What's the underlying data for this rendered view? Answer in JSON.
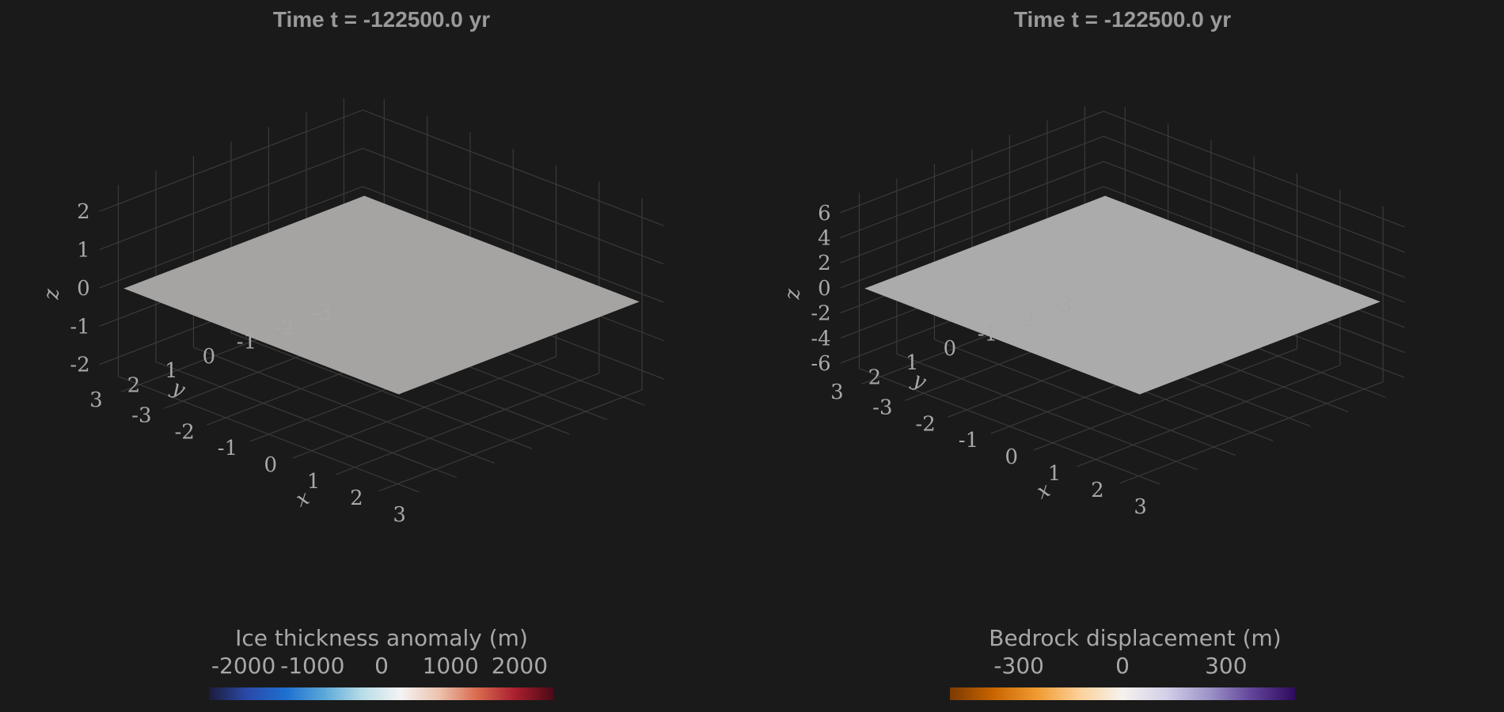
{
  "chart_data": [
    {
      "type": "surface",
      "title": "Time t = -122500.0 yr",
      "xlabel": "x",
      "ylabel": "y",
      "zlabel": "z",
      "x_ticks": [
        -3,
        -2,
        -1,
        0,
        1,
        2,
        3
      ],
      "y_ticks": [
        -3,
        -2,
        -1,
        0,
        1,
        2,
        3
      ],
      "z_ticks": [
        -2,
        -1,
        0,
        1,
        2
      ],
      "xlim": [
        -3.5,
        3.5
      ],
      "ylim": [
        -3.5,
        3.5
      ],
      "zlim": [
        -2.5,
        2.5
      ],
      "surface_z": 0,
      "surface_extent": [
        -3.2,
        3.2
      ],
      "surface_color": "#a6a4a3",
      "grid": true,
      "colorbar": {
        "label": "Ice thickness anomaly (m)",
        "ticks": [
          -2000,
          -1000,
          0,
          1000,
          2000
        ],
        "range": [
          -2500,
          2500
        ],
        "colors": [
          "#1c1c3a",
          "#2a4aa8",
          "#1e6fd0",
          "#5aa8d8",
          "#b8dde8",
          "#f4f4f4",
          "#ecc2ae",
          "#d86a4e",
          "#a81e2e",
          "#4a0a16"
        ]
      }
    },
    {
      "type": "surface",
      "title": "Time t = -122500.0 yr",
      "xlabel": "x",
      "ylabel": "y",
      "zlabel": "z",
      "x_ticks": [
        -3,
        -2,
        -1,
        0,
        1,
        2,
        3
      ],
      "y_ticks": [
        -3,
        -2,
        -1,
        0,
        1,
        2,
        3
      ],
      "z_ticks": [
        -6,
        -4,
        -2,
        0,
        2,
        4,
        6
      ],
      "xlim": [
        -3.5,
        3.5
      ],
      "ylim": [
        -3.5,
        3.5
      ],
      "zlim": [
        -7,
        7
      ],
      "surface_z": 0,
      "surface_extent": [
        -3.2,
        3.2
      ],
      "surface_color": "#ababab",
      "grid": true,
      "colorbar": {
        "label": "Bedrock displacement (m)",
        "ticks": [
          -300,
          0,
          300
        ],
        "range": [
          -500,
          500
        ],
        "colors": [
          "#7a3a00",
          "#c86400",
          "#f09a30",
          "#fcd098",
          "#f6f2ee",
          "#d4d0e8",
          "#9e94c8",
          "#62449a",
          "#2e0a5c"
        ]
      }
    }
  ]
}
